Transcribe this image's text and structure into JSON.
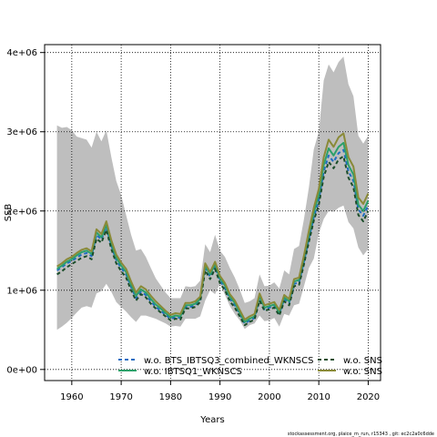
{
  "chart_data": {
    "type": "line",
    "title": "",
    "xlabel": "Years",
    "ylabel": "SSB",
    "xlim": [
      1954.5,
      2022.5
    ],
    "ylim": [
      -140000,
      4100000
    ],
    "x_ticks": [
      1960,
      1970,
      1980,
      1990,
      2000,
      2010,
      2020
    ],
    "y_ticks": [
      0,
      1000000,
      2000000,
      3000000,
      4000000
    ],
    "y_tick_labels": [
      "0e+00",
      "1e+06",
      "2e+06",
      "3e+06",
      "4e+06"
    ],
    "grid": true,
    "legend_position": "bottom-right",
    "footer": "stockassessment.org, plaice_m_run, r15343 , git: ec2c2a0c6dde",
    "confidence_band": {
      "color": "#bebebe",
      "x": [
        1957,
        1958,
        1959,
        1960,
        1961,
        1962,
        1963,
        1964,
        1965,
        1966,
        1967,
        1968,
        1969,
        1970,
        1971,
        1972,
        1973,
        1974,
        1975,
        1976,
        1977,
        1978,
        1979,
        1980,
        1981,
        1982,
        1983,
        1984,
        1985,
        1986,
        1987,
        1988,
        1989,
        1990,
        1991,
        1992,
        1993,
        1994,
        1995,
        1996,
        1997,
        1998,
        1999,
        2000,
        2001,
        2002,
        2003,
        2004,
        2005,
        2006,
        2007,
        2008,
        2009,
        2010,
        2011,
        2012,
        2013,
        2014,
        2015,
        2016,
        2017,
        2018,
        2019,
        2020
      ],
      "upper": [
        3080000,
        3050000,
        3060000,
        3020000,
        2940000,
        2920000,
        2900000,
        2800000,
        3000000,
        2880000,
        3020000,
        2680000,
        2380000,
        2200000,
        1950000,
        1700000,
        1500000,
        1520000,
        1420000,
        1280000,
        1150000,
        1060000,
        970000,
        900000,
        900000,
        900000,
        1050000,
        1040000,
        1050000,
        1120000,
        1580000,
        1480000,
        1700000,
        1500000,
        1420000,
        1280000,
        1160000,
        1010000,
        840000,
        860000,
        900000,
        1200000,
        1050000,
        1060000,
        1100000,
        1020000,
        1250000,
        1200000,
        1520000,
        1560000,
        1900000,
        2300000,
        2780000,
        3000000,
        3650000,
        3850000,
        3750000,
        3880000,
        3950000,
        3600000,
        3450000,
        2950000,
        2850000,
        2950000
      ],
      "lower": [
        500000,
        540000,
        590000,
        650000,
        720000,
        780000,
        800000,
        780000,
        960000,
        990000,
        1080000,
        980000,
        850000,
        790000,
        730000,
        660000,
        600000,
        680000,
        680000,
        660000,
        640000,
        610000,
        580000,
        540000,
        550000,
        540000,
        640000,
        640000,
        640000,
        670000,
        870000,
        1000000,
        950000,
        1080000,
        940000,
        800000,
        700000,
        620000,
        510000,
        560000,
        580000,
        680000,
        610000,
        620000,
        650000,
        540000,
        700000,
        680000,
        810000,
        830000,
        1050000,
        1280000,
        1400000,
        1720000,
        1900000,
        2000000,
        1990000,
        2040000,
        2070000,
        1860000,
        1780000,
        1540000,
        1440000,
        1520000
      ]
    },
    "x": [
      1957,
      1958,
      1959,
      1960,
      1961,
      1962,
      1963,
      1964,
      1965,
      1966,
      1967,
      1968,
      1969,
      1970,
      1971,
      1972,
      1973,
      1974,
      1975,
      1976,
      1977,
      1978,
      1979,
      1980,
      1981,
      1982,
      1983,
      1984,
      1985,
      1986,
      1987,
      1988,
      1989,
      1990,
      1991,
      1992,
      1993,
      1994,
      1995,
      1996,
      1997,
      1998,
      1999,
      2000,
      2001,
      2002,
      2003,
      2004,
      2005,
      2006,
      2007,
      2008,
      2009,
      2010,
      2011,
      2012,
      2013,
      2014,
      2015,
      2016,
      2017,
      2018,
      2019,
      2020
    ],
    "series": [
      {
        "name": "w.o. BTS_IBTSQ3_combined_WKNSCS",
        "color": "#1f6cc2",
        "dash": "4,3",
        "values": [
          1250000,
          1290000,
          1340000,
          1370000,
          1410000,
          1450000,
          1470000,
          1430000,
          1700000,
          1640000,
          1800000,
          1560000,
          1380000,
          1280000,
          1200000,
          1040000,
          900000,
          980000,
          940000,
          860000,
          790000,
          740000,
          690000,
          640000,
          660000,
          650000,
          790000,
          790000,
          810000,
          870000,
          1280000,
          1170000,
          1300000,
          1120000,
          1030000,
          890000,
          810000,
          700000,
          580000,
          620000,
          650000,
          900000,
          760000,
          780000,
          800000,
          700000,
          890000,
          840000,
          1080000,
          1100000,
          1360000,
          1650000,
          1920000,
          2140000,
          2500000,
          2700000,
          2620000,
          2730000,
          2770000,
          2500000,
          2380000,
          2020000,
          1940000,
          2070000
        ]
      },
      {
        "name": "w.o. IBTSQ1_WKNSCS",
        "color": "#2ca06a",
        "dash": "",
        "values": [
          1270000,
          1310000,
          1360000,
          1390000,
          1440000,
          1480000,
          1500000,
          1460000,
          1730000,
          1670000,
          1830000,
          1590000,
          1410000,
          1310000,
          1230000,
          1070000,
          930000,
          1010000,
          970000,
          890000,
          820000,
          770000,
          710000,
          660000,
          680000,
          670000,
          810000,
          810000,
          830000,
          890000,
          1310000,
          1200000,
          1330000,
          1150000,
          1060000,
          920000,
          840000,
          720000,
          600000,
          640000,
          670000,
          930000,
          780000,
          800000,
          820000,
          720000,
          910000,
          860000,
          1110000,
          1130000,
          1400000,
          1700000,
          1980000,
          2210000,
          2580000,
          2790000,
          2700000,
          2810000,
          2860000,
          2580000,
          2460000,
          2080000,
          2000000,
          2130000
        ]
      },
      {
        "name": "w.o. SNS",
        "color": "#1b4d2a",
        "dash": "4,3",
        "values": [
          1200000,
          1240000,
          1290000,
          1330000,
          1370000,
          1410000,
          1430000,
          1390000,
          1650000,
          1600000,
          1760000,
          1520000,
          1340000,
          1240000,
          1160000,
          1000000,
          870000,
          950000,
          910000,
          830000,
          770000,
          720000,
          670000,
          620000,
          640000,
          630000,
          770000,
          770000,
          790000,
          850000,
          1250000,
          1140000,
          1270000,
          1090000,
          1000000,
          860000,
          780000,
          670000,
          560000,
          600000,
          630000,
          870000,
          740000,
          760000,
          780000,
          680000,
          860000,
          810000,
          1050000,
          1070000,
          1330000,
          1610000,
          1880000,
          2080000,
          2430000,
          2620000,
          2540000,
          2650000,
          2690000,
          2420000,
          2300000,
          1950000,
          1870000,
          2000000
        ]
      },
      {
        "name": "w.o. SNS",
        "color": "#8a8a38",
        "dash": "",
        "values": [
          1300000,
          1340000,
          1390000,
          1420000,
          1470000,
          1510000,
          1530000,
          1490000,
          1770000,
          1710000,
          1870000,
          1630000,
          1450000,
          1350000,
          1270000,
          1110000,
          970000,
          1050000,
          1010000,
          930000,
          860000,
          800000,
          740000,
          690000,
          710000,
          700000,
          840000,
          840000,
          860000,
          920000,
          1340000,
          1230000,
          1360000,
          1180000,
          1090000,
          950000,
          870000,
          750000,
          630000,
          670000,
          700000,
          960000,
          810000,
          830000,
          850000,
          750000,
          940000,
          890000,
          1140000,
          1160000,
          1440000,
          1750000,
          2040000,
          2280000,
          2680000,
          2900000,
          2810000,
          2930000,
          2980000,
          2680000,
          2560000,
          2170000,
          2090000,
          2220000
        ]
      }
    ]
  }
}
